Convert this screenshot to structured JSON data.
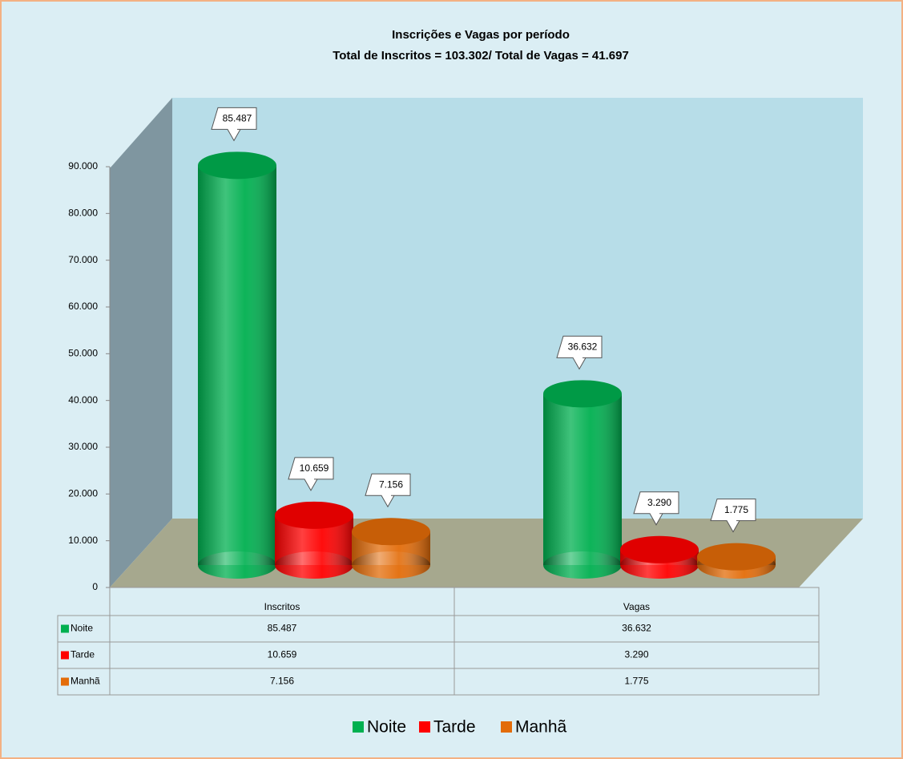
{
  "chart_data": {
    "type": "bar3d",
    "title": "Inscrições e Vagas por período",
    "subtitle": "Total de Inscritos = 103.302/ Total de Vagas = 41.697",
    "categories": [
      "Inscritos",
      "Vagas"
    ],
    "series": [
      {
        "name": "Noite",
        "color": "#00b050",
        "values": [
          85487,
          36632
        ],
        "value_labels": [
          "85.487",
          "36.632"
        ]
      },
      {
        "name": "Tarde",
        "color": "#ff0000",
        "values": [
          10659,
          3290
        ],
        "value_labels": [
          "10.659",
          "3.290"
        ]
      },
      {
        "name": "Manhã",
        "color": "#e36c09",
        "values": [
          7156,
          1775
        ],
        "value_labels": [
          "7.156",
          "1.775"
        ]
      }
    ],
    "ylim": [
      0,
      90000
    ],
    "yticks": [
      {
        "value": 0,
        "label": "0"
      },
      {
        "value": 10000,
        "label": "10.000"
      },
      {
        "value": 20000,
        "label": "20.000"
      },
      {
        "value": 30000,
        "label": "30.000"
      },
      {
        "value": 40000,
        "label": "40.000"
      },
      {
        "value": 50000,
        "label": "50.000"
      },
      {
        "value": 60000,
        "label": "60.000"
      },
      {
        "value": 70000,
        "label": "70.000"
      },
      {
        "value": 80000,
        "label": "80.000"
      },
      {
        "value": 90000,
        "label": "90.000"
      }
    ],
    "legend": "bottom"
  }
}
